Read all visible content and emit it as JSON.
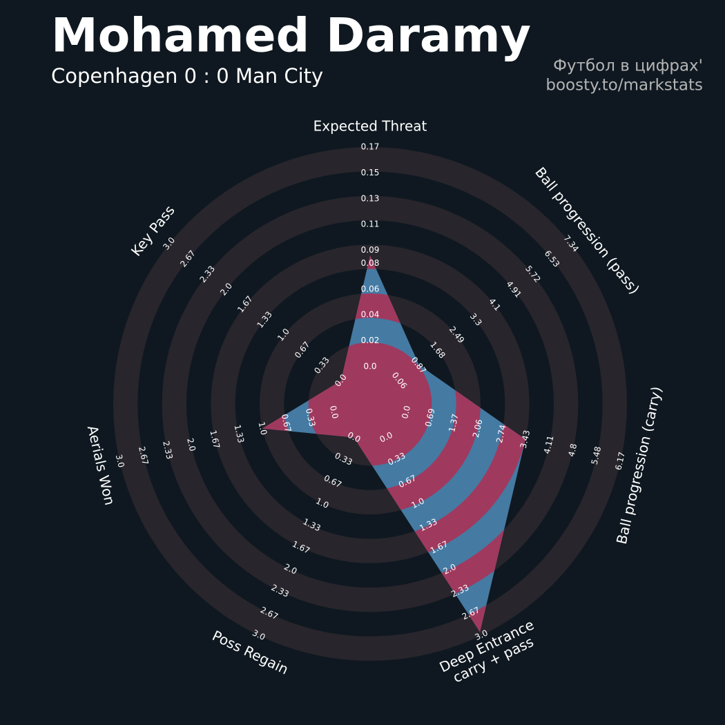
{
  "chart_data": {
    "type": "radar",
    "title": "Mohamed Daramy",
    "subtitle": "Copenhagen 0 : 0 Man City",
    "credits": [
      "Футбол в цифрах'",
      "boosty.to/markstats"
    ],
    "categories": [
      "Expected Threat",
      "Ball progression (pass)",
      "Ball progression (carry)",
      "Deep Entrance\ncarry + pass",
      "Poss Regain",
      "Aerials Won",
      "Key Pass"
    ],
    "values": [
      0.086,
      0.9,
      3.43,
      2.95,
      0,
      1.0,
      0
    ],
    "colors": {
      "background": "#0f1820",
      "ring": "#28252c",
      "fill": "#457aa3",
      "fill_alt": "#a0395e"
    },
    "axes": [
      {
        "ylim": [
          0,
          0.17
        ],
        "yticks": [
          {
            "value": 0,
            "label": "0.0"
          },
          0.02,
          0.04,
          0.06,
          0.08,
          0.09,
          0.11,
          0.13,
          0.15,
          0.17
        ]
      },
      {
        "ylim": [
          0.06,
          7.34
        ],
        "yticks": [
          0.06,
          0.87,
          1.68,
          2.49,
          3.3,
          4.1,
          4.91,
          5.72,
          6.53,
          7.34
        ]
      },
      {
        "ylim": [
          0,
          6.17
        ],
        "yticks": [
          {
            "value": 0,
            "label": "0.0"
          },
          0.69,
          1.37,
          2.06,
          2.74,
          3.43,
          4.11,
          4.8,
          5.48,
          6.17
        ]
      },
      {
        "ylim": [
          0,
          3
        ],
        "yticks": [
          {
            "value": 0,
            "label": "0.0"
          },
          0.33,
          0.67,
          {
            "value": 1,
            "label": "1.0"
          },
          1.33,
          1.67,
          {
            "value": 2,
            "label": "2.0"
          },
          2.33,
          2.67,
          {
            "value": 3,
            "label": "3.0"
          }
        ]
      },
      {
        "ylim": [
          0,
          3
        ],
        "yticks": [
          {
            "value": 0,
            "label": "0.0"
          },
          0.33,
          0.67,
          {
            "value": 1,
            "label": "1.0"
          },
          1.33,
          1.67,
          {
            "value": 2,
            "label": "2.0"
          },
          2.33,
          2.67,
          {
            "value": 3,
            "label": "3.0"
          }
        ]
      },
      {
        "ylim": [
          0,
          3
        ],
        "yticks": [
          {
            "value": 0,
            "label": "0.0"
          },
          0.33,
          0.67,
          {
            "value": 1,
            "label": "1.0"
          },
          1.33,
          1.67,
          {
            "value": 2,
            "label": "2.0"
          },
          2.33,
          2.67,
          {
            "value": 3,
            "label": "3.0"
          }
        ]
      },
      {
        "ylim": [
          0,
          3
        ],
        "yticks": [
          {
            "value": 0,
            "label": "0.0"
          },
          0.33,
          0.67,
          {
            "value": 1,
            "label": "1.0"
          },
          1.33,
          1.67,
          {
            "value": 2,
            "label": "2.0"
          },
          2.33,
          2.67,
          {
            "value": 3,
            "label": "3.0"
          }
        ]
      }
    ]
  }
}
